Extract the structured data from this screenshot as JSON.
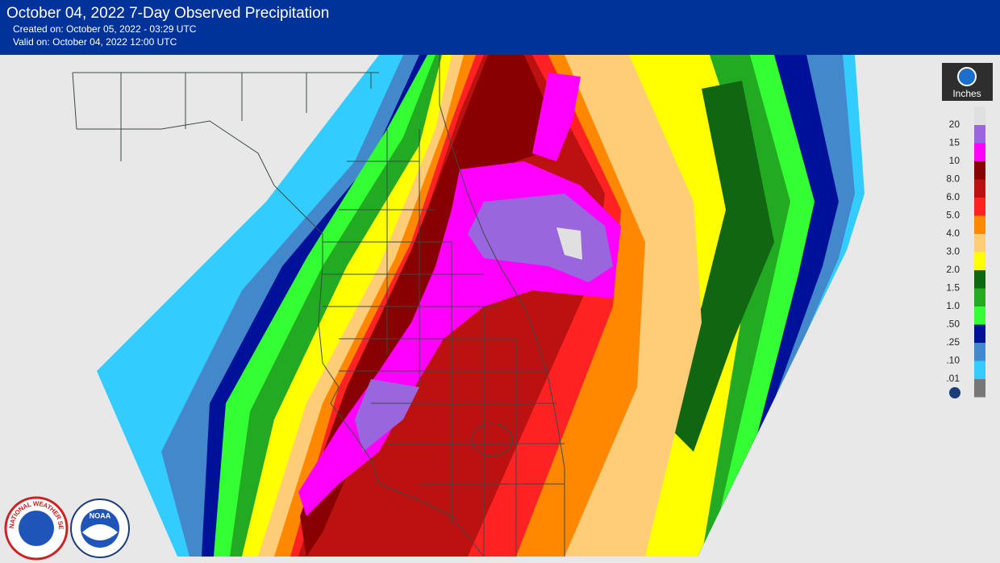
{
  "header": {
    "title": "October 04, 2022 7-Day Observed Precipitation",
    "created": "Created on: October 05, 2022 - 03:29 UTC",
    "valid": "Valid on: October 04, 2022 12:00 UTC"
  },
  "legend": {
    "unit": "Inches",
    "items": [
      {
        "label": "20",
        "color": "#9966dd"
      },
      {
        "label": "15",
        "color": "#ff00ff"
      },
      {
        "label": "10",
        "color": "#880000"
      },
      {
        "label": "8.0",
        "color": "#bb1111"
      },
      {
        "label": "6.0",
        "color": "#ff2222"
      },
      {
        "label": "5.0",
        "color": "#ff8800"
      },
      {
        "label": "4.0",
        "color": "#ffcc77"
      },
      {
        "label": "3.0",
        "color": "#ffff00"
      },
      {
        "label": "2.0",
        "color": "#116611"
      },
      {
        "label": "1.5",
        "color": "#22aa22"
      },
      {
        "label": "1.0",
        "color": "#33ff33"
      },
      {
        "label": ".50",
        "color": "#001199"
      },
      {
        "label": ".25",
        "color": "#4488cc"
      },
      {
        "label": ".10",
        "color": "#33ccff"
      },
      {
        "label": ".01",
        "color": "#777777"
      }
    ],
    "top_color": "#e0e0e0"
  },
  "logos": {
    "nws": "NATIONAL WEATHER SERVICE",
    "noaa": "NOAA"
  }
}
